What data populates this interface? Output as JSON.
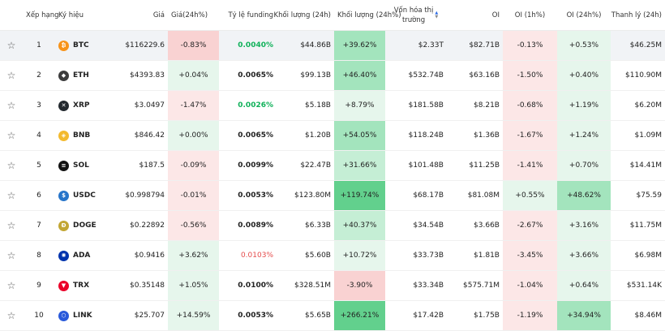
{
  "headers": {
    "rank": "Xếp hạng",
    "symbol": "Ký hiệu",
    "price": "Giá",
    "change": "Giá(24h%)",
    "funding": "Tỷ lệ funding",
    "volume": "Khối lượng (24h)",
    "volume_change": "Khối lượng (24h%)",
    "mcap_line1": "Vốn hóa thị",
    "mcap_line2": "trường",
    "oi": "OI",
    "oi_1h": "OI (1h%)",
    "oi_24h": "OI (24h%)",
    "liquidation": "Thanh lý (24h)"
  },
  "colors": {
    "neg_light": "#fce7e7",
    "neg_mid": "#f9d2d2",
    "pos_light": "#e6f6ec",
    "pos_mid": "#c5eed5",
    "pos_strong": "#a3e4bd",
    "pos_deep": "#62d08d",
    "btc": "#f7931a",
    "eth": "#3c3c3d",
    "xrp": "#23292f",
    "bnb": "#f3ba2f",
    "sol": "#111111",
    "usdc": "#2775ca",
    "doge": "#c2a633",
    "ada": "#0033ad",
    "trx": "#eb0029",
    "link": "#2a5ada"
  },
  "rows": [
    {
      "rank": "1",
      "symbol": "BTC",
      "icon": "bitcoin-icon",
      "glyph": "₿",
      "iconColor": "btc",
      "price": "$116229.6",
      "change": "-0.83%",
      "changeBg": "neg_mid",
      "funding": "0.0040%",
      "fundingClass": "pos-f",
      "volume": "$44.86B",
      "volumeChange": "+39.62%",
      "volumeChangeBg": "pos_strong",
      "mcap": "$2.33T",
      "oi": "$82.71B",
      "oi1h": "-0.13%",
      "oi1hBg": "neg_light",
      "oi24h": "+0.53%",
      "oi24hBg": "pos_light",
      "liq": "$46.25M",
      "highlight": true
    },
    {
      "rank": "2",
      "symbol": "ETH",
      "icon": "ethereum-icon",
      "glyph": "◆",
      "iconColor": "eth",
      "price": "$4393.83",
      "change": "+0.04%",
      "changeBg": "pos_light",
      "funding": "0.0065%",
      "fundingClass": "neu-f",
      "volume": "$99.13B",
      "volumeChange": "+46.40%",
      "volumeChangeBg": "pos_strong",
      "mcap": "$532.74B",
      "oi": "$63.16B",
      "oi1h": "-1.50%",
      "oi1hBg": "neg_light",
      "oi24h": "+0.40%",
      "oi24hBg": "pos_light",
      "liq": "$110.90M",
      "highlight": false
    },
    {
      "rank": "3",
      "symbol": "XRP",
      "icon": "xrp-icon",
      "glyph": "✕",
      "iconColor": "xrp",
      "price": "$3.0497",
      "change": "-1.47%",
      "changeBg": "neg_light",
      "funding": "0.0026%",
      "fundingClass": "pos-f",
      "volume": "$5.18B",
      "volumeChange": "+8.79%",
      "volumeChangeBg": "pos_light",
      "mcap": "$181.58B",
      "oi": "$8.21B",
      "oi1h": "-0.68%",
      "oi1hBg": "neg_light",
      "oi24h": "+1.19%",
      "oi24hBg": "pos_light",
      "liq": "$6.20M",
      "highlight": false
    },
    {
      "rank": "4",
      "symbol": "BNB",
      "icon": "bnb-icon",
      "glyph": "◈",
      "iconColor": "bnb",
      "price": "$846.42",
      "change": "+0.00%",
      "changeBg": "pos_light",
      "funding": "0.0065%",
      "fundingClass": "neu-f",
      "volume": "$1.20B",
      "volumeChange": "+54.05%",
      "volumeChangeBg": "pos_strong",
      "mcap": "$118.24B",
      "oi": "$1.36B",
      "oi1h": "-1.67%",
      "oi1hBg": "neg_light",
      "oi24h": "+1.24%",
      "oi24hBg": "pos_light",
      "liq": "$1.09M",
      "highlight": false
    },
    {
      "rank": "5",
      "symbol": "SOL",
      "icon": "solana-icon",
      "glyph": "≡",
      "iconColor": "sol",
      "price": "$187.5",
      "change": "-0.09%",
      "changeBg": "neg_light",
      "funding": "0.0099%",
      "fundingClass": "neu-f",
      "volume": "$22.47B",
      "volumeChange": "+31.66%",
      "volumeChangeBg": "pos_mid",
      "mcap": "$101.48B",
      "oi": "$11.25B",
      "oi1h": "-1.41%",
      "oi1hBg": "neg_light",
      "oi24h": "+0.70%",
      "oi24hBg": "pos_light",
      "liq": "$14.41M",
      "highlight": false
    },
    {
      "rank": "6",
      "symbol": "USDC",
      "icon": "usdc-icon",
      "glyph": "$",
      "iconColor": "usdc",
      "price": "$0.998794",
      "change": "-0.01%",
      "changeBg": "neg_light",
      "funding": "0.0053%",
      "fundingClass": "neu-f",
      "volume": "$123.80M",
      "volumeChange": "+119.74%",
      "volumeChangeBg": "pos_deep",
      "mcap": "$68.17B",
      "oi": "$81.08M",
      "oi1h": "+0.55%",
      "oi1hBg": "pos_light",
      "oi24h": "+48.62%",
      "oi24hBg": "pos_strong",
      "liq": "$75.59",
      "highlight": false
    },
    {
      "rank": "7",
      "symbol": "DOGE",
      "icon": "dogecoin-icon",
      "glyph": "Ð",
      "iconColor": "doge",
      "price": "$0.22892",
      "change": "-0.56%",
      "changeBg": "neg_light",
      "funding": "0.0089%",
      "fundingClass": "neu-f",
      "volume": "$6.33B",
      "volumeChange": "+40.37%",
      "volumeChangeBg": "pos_mid",
      "mcap": "$34.54B",
      "oi": "$3.66B",
      "oi1h": "-2.67%",
      "oi1hBg": "neg_light",
      "oi24h": "+3.16%",
      "oi24hBg": "pos_light",
      "liq": "$11.75M",
      "highlight": false
    },
    {
      "rank": "8",
      "symbol": "ADA",
      "icon": "cardano-icon",
      "glyph": "✺",
      "iconColor": "ada",
      "price": "$0.9416",
      "change": "+3.62%",
      "changeBg": "pos_light",
      "funding": "0.0103%",
      "fundingClass": "neg-f",
      "volume": "$5.60B",
      "volumeChange": "+10.72%",
      "volumeChangeBg": "pos_light",
      "mcap": "$33.73B",
      "oi": "$1.81B",
      "oi1h": "-3.45%",
      "oi1hBg": "neg_light",
      "oi24h": "+3.66%",
      "oi24hBg": "pos_light",
      "liq": "$6.98M",
      "highlight": false
    },
    {
      "rank": "9",
      "symbol": "TRX",
      "icon": "tron-icon",
      "glyph": "▼",
      "iconColor": "trx",
      "price": "$0.35148",
      "change": "+1.05%",
      "changeBg": "pos_light",
      "funding": "0.0100%",
      "fundingClass": "neu-f",
      "volume": "$328.51M",
      "volumeChange": "-3.90%",
      "volumeChangeBg": "neg_mid",
      "mcap": "$33.34B",
      "oi": "$575.71M",
      "oi1h": "-1.04%",
      "oi1hBg": "neg_light",
      "oi24h": "+0.64%",
      "oi24hBg": "pos_light",
      "liq": "$531.14K",
      "highlight": false
    },
    {
      "rank": "10",
      "symbol": "LINK",
      "icon": "chainlink-icon",
      "glyph": "⬡",
      "iconColor": "link",
      "price": "$25.707",
      "change": "+14.59%",
      "changeBg": "pos_light",
      "funding": "0.0053%",
      "fundingClass": "neu-f",
      "volume": "$5.65B",
      "volumeChange": "+266.21%",
      "volumeChangeBg": "pos_deep",
      "mcap": "$17.42B",
      "oi": "$1.75B",
      "oi1h": "-1.19%",
      "oi1hBg": "neg_light",
      "oi24h": "+34.94%",
      "oi24hBg": "pos_strong",
      "liq": "$8.46M",
      "highlight": false
    }
  ]
}
